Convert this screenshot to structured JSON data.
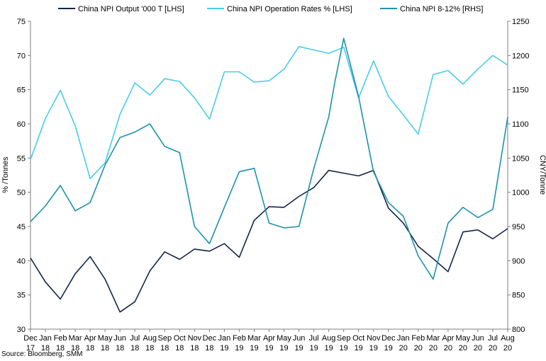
{
  "chart_data": {
    "type": "line",
    "source": "Source: Bloomberg, SMM",
    "legend_placement": "top",
    "ylabel_left": "% /Tonnes",
    "ylabel_right": "CNY/Tonne",
    "ylim_left": [
      30,
      75
    ],
    "ylim_right": [
      800,
      1250
    ],
    "yticks_left": [
      "30",
      "35",
      "40",
      "45",
      "50",
      "55",
      "60",
      "65",
      "70",
      "75"
    ],
    "yticks_right": [
      "800",
      "850",
      "900",
      "950",
      "1000",
      "1050",
      "1100",
      "1150",
      "1200",
      "1250"
    ],
    "grid": false,
    "x": [
      [
        "Dec",
        "17"
      ],
      [
        "Jan",
        "18"
      ],
      [
        "Feb",
        "18"
      ],
      [
        "Mar",
        "18"
      ],
      [
        "Apr",
        "18"
      ],
      [
        "May",
        "18"
      ],
      [
        "Jun",
        "18"
      ],
      [
        "Jul",
        "18"
      ],
      [
        "Aug",
        "18"
      ],
      [
        "Sep",
        "18"
      ],
      [
        "Oct",
        "18"
      ],
      [
        "Nov",
        "18"
      ],
      [
        "Dec",
        "18"
      ],
      [
        "Jan",
        "19"
      ],
      [
        "Feb",
        "19"
      ],
      [
        "Mar",
        "19"
      ],
      [
        "Apr",
        "19"
      ],
      [
        "May",
        "19"
      ],
      [
        "Jun",
        "19"
      ],
      [
        "Jul",
        "19"
      ],
      [
        "Aug",
        "19"
      ],
      [
        "Sep",
        "19"
      ],
      [
        "Oct",
        "19"
      ],
      [
        "Nov",
        "19"
      ],
      [
        "Dec",
        "19"
      ],
      [
        "Jan",
        "20"
      ],
      [
        "Feb",
        "20"
      ],
      [
        "Mar",
        "20"
      ],
      [
        "Apr",
        "20"
      ],
      [
        "May",
        "20"
      ],
      [
        "Jun",
        "20"
      ],
      [
        "Jul",
        "20"
      ],
      [
        "Aug",
        "20"
      ]
    ],
    "series": [
      {
        "name": "China NPI Output '000 T [LHS]",
        "axis": "left",
        "color": "#14244a",
        "points": [
          [
            0,
            40.4
          ],
          [
            1.0,
            36.9
          ],
          [
            2.0,
            34.4
          ],
          [
            3.0,
            38.1
          ],
          [
            4.0,
            40.6
          ],
          [
            5.0,
            37.3
          ],
          [
            6.0,
            32.5
          ],
          [
            7.0,
            34.0
          ],
          [
            8.0,
            38.5
          ],
          [
            9.0,
            41.3
          ],
          [
            10.0,
            40.2
          ],
          [
            11.0,
            41.7
          ],
          [
            12.0,
            41.4
          ],
          [
            13.0,
            42.5
          ],
          [
            14.0,
            40.5
          ],
          [
            15.0,
            45.9
          ],
          [
            16.0,
            47.9
          ],
          [
            17.0,
            47.8
          ],
          [
            18.0,
            49.4
          ],
          [
            19.0,
            50.7
          ],
          [
            20.0,
            53.2
          ],
          [
            21.0,
            52.8
          ],
          [
            22.0,
            52.4
          ],
          [
            23.0,
            53.2
          ],
          [
            24.0,
            47.7
          ],
          [
            25.0,
            45.5
          ],
          [
            26.0,
            42.1
          ],
          [
            27.0,
            40.3
          ],
          [
            28.0,
            38.4
          ],
          [
            29.0,
            44.2
          ],
          [
            30.0,
            44.5
          ],
          [
            31.0,
            43.2
          ],
          [
            32.0,
            44.7
          ]
        ]
      },
      {
        "name": "China NPI Operation Rates % [LHS]",
        "axis": "left",
        "color": "#47cde9",
        "points": [
          [
            0,
            54.8
          ],
          [
            1.0,
            60.8
          ],
          [
            2.0,
            64.9
          ],
          [
            3.0,
            59.7
          ],
          [
            4.0,
            52.0
          ],
          [
            5.0,
            54.3
          ],
          [
            6.0,
            61.4
          ],
          [
            7.0,
            66.0
          ],
          [
            8.0,
            64.2
          ],
          [
            9.0,
            66.6
          ],
          [
            10.0,
            66.2
          ],
          [
            11.0,
            63.8
          ],
          [
            12.0,
            60.7
          ],
          [
            13.0,
            67.6
          ],
          [
            14.0,
            67.6
          ],
          [
            15.0,
            66.1
          ],
          [
            16.0,
            66.3
          ],
          [
            17.0,
            68.0
          ],
          [
            18.0,
            71.3
          ],
          [
            19.0,
            70.8
          ],
          [
            20.0,
            70.3
          ],
          [
            21.0,
            71.2
          ],
          [
            22.0,
            63.8
          ],
          [
            23.0,
            69.2
          ],
          [
            24.0,
            64.0
          ],
          [
            25.0,
            61.3
          ],
          [
            26.0,
            58.5
          ],
          [
            27.0,
            67.2
          ],
          [
            28.0,
            67.8
          ],
          [
            29.0,
            65.8
          ],
          [
            30.0,
            68.0
          ],
          [
            31.0,
            70.0
          ],
          [
            32.0,
            68.6
          ]
        ]
      },
      {
        "name": "China NPI 8-12% [RHS]",
        "axis": "right",
        "color": "#1b93ab",
        "points": [
          [
            0,
            957
          ],
          [
            1.0,
            980
          ],
          [
            2.0,
            1010
          ],
          [
            3.0,
            973
          ],
          [
            4.0,
            985
          ],
          [
            5.0,
            1040
          ],
          [
            6.0,
            1080
          ],
          [
            7.0,
            1088
          ],
          [
            8.0,
            1100
          ],
          [
            9.0,
            1067
          ],
          [
            10.0,
            1058
          ],
          [
            11.0,
            950
          ],
          [
            12.0,
            925
          ],
          [
            13.0,
            978
          ],
          [
            14.0,
            1030
          ],
          [
            15.0,
            1035
          ],
          [
            16.0,
            955
          ],
          [
            17.0,
            948
          ],
          [
            18.0,
            950
          ],
          [
            19.0,
            1035
          ],
          [
            20.0,
            1110
          ],
          [
            20.4,
            1160
          ],
          [
            21.0,
            1225
          ],
          [
            22.0,
            1140
          ],
          [
            23.0,
            1030
          ],
          [
            24.0,
            985
          ],
          [
            25.0,
            965
          ],
          [
            26.0,
            907
          ],
          [
            27.0,
            873
          ],
          [
            28.0,
            955
          ],
          [
            29.0,
            978
          ],
          [
            30.0,
            963
          ],
          [
            31.0,
            975
          ],
          [
            32.0,
            1110
          ]
        ]
      }
    ]
  }
}
